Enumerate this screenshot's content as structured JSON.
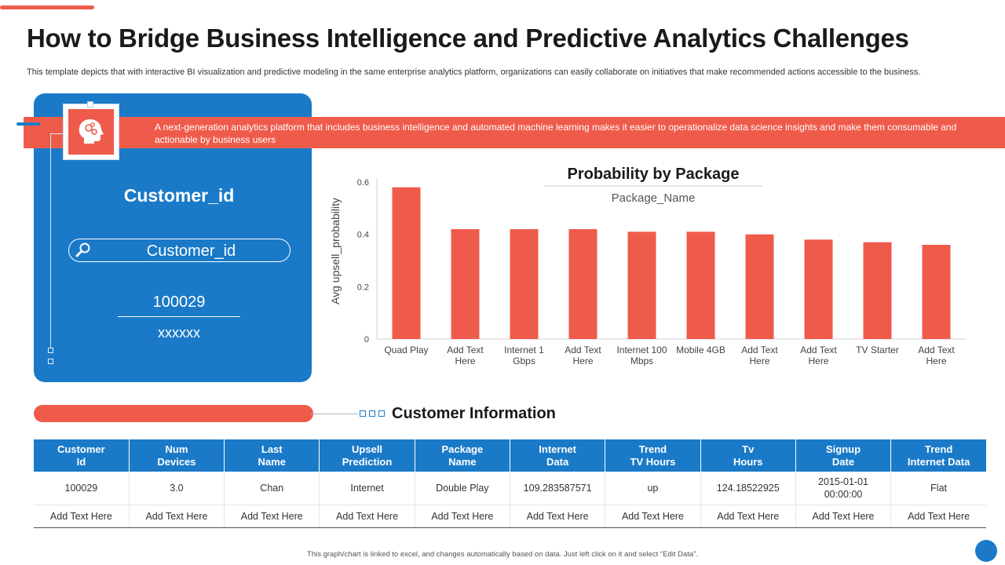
{
  "header": {
    "title": "How to Bridge Business Intelligence and Predictive Analytics Challenges",
    "description": "This template depicts that with interactive BI visualization and predictive modeling in the same enterprise analytics platform, organizations can easily collaborate on initiatives that make recommended actions accessible to the business."
  },
  "banner": {
    "text": "A next-generation  analytics platform  that includes business intelligence  and automated machine learning  makes it easier to operationalize  data science insights  and make them consumable and actionable by business users"
  },
  "customer_panel": {
    "title": "Customer_id",
    "search_label": "Customer_id",
    "value": "100029",
    "sub_value": "xxxxxx"
  },
  "chart_data": {
    "type": "bar",
    "title": "Probability  by Package",
    "subtitle": "Package_Name",
    "xlabel": "",
    "ylabel": "Avg upsell_probability",
    "ylim": [
      0,
      0.6
    ],
    "yticks": [
      "0",
      "0.2",
      "0.4",
      "0.6"
    ],
    "categories": [
      "Quad Play",
      "Add Text Here",
      "Internet 1 Gbps",
      "Add Text Here",
      "Internet 100 Mbps",
      "Mobile 4GB",
      "Add Text Here",
      "Add Text Here",
      "TV Starter",
      "Add Text Here"
    ],
    "values": [
      0.58,
      0.42,
      0.42,
      0.42,
      0.41,
      0.41,
      0.4,
      0.38,
      0.37,
      0.36
    ],
    "bar_color": "#ef5b4b",
    "grid": false
  },
  "customer_info": {
    "title": "Customer Information",
    "columns": [
      "Customer\nId",
      "Num\nDevices",
      "Last\nName",
      "Upsell\nPrediction",
      "Package\nName",
      "Internet\nData",
      "Trend\nTV Hours",
      "Tv\nHours",
      "Signup\nDate",
      "Trend\nInternet Data"
    ],
    "rows": [
      [
        "100029",
        "3.0",
        "Chan",
        "Internet",
        "Double  Play",
        "109.283587571",
        "up",
        "124.18522925",
        "2015-01-01 00:00:00",
        "Flat"
      ],
      [
        "Add Text Here",
        "Add Text Here",
        "Add Text Here",
        "Add Text Here",
        "Add Text Here",
        "Add Text Here",
        "Add Text Here",
        "Add Text Here",
        "Add Text Here",
        "Add Text Here"
      ]
    ]
  },
  "footer": {
    "note": "This graph/chart is linked to excel, and changes automatically based on data.  Just left click on it and select “Edit Data”."
  },
  "colors": {
    "accent_red": "#ef5b4b",
    "accent_blue": "#1a7ac8"
  },
  "icons": {
    "brain": "head-gears-icon",
    "search": "search-icon"
  }
}
